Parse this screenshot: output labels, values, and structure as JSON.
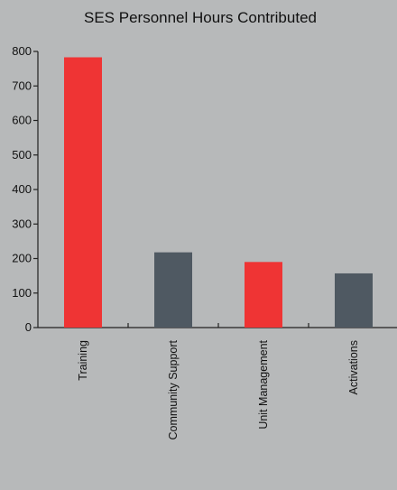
{
  "chart_data": {
    "type": "bar",
    "title": "SES Personnel Hours Contributed",
    "xlabel": "",
    "ylabel": "",
    "categories": [
      "Training",
      "Community Support",
      "Unit Management",
      "Activations"
    ],
    "values": [
      783,
      218,
      190,
      157
    ],
    "bar_colors": [
      "#ef3434",
      "#4f5962",
      "#ef3434",
      "#4f5962"
    ],
    "ylim": [
      0,
      800
    ],
    "yticks": [
      0,
      100,
      200,
      300,
      400,
      500,
      600,
      700,
      800
    ],
    "grid": false,
    "legend": "none"
  },
  "colors": {
    "background": "#b7b9ba",
    "accent_red": "#ef3434",
    "accent_slate": "#4f5962"
  }
}
